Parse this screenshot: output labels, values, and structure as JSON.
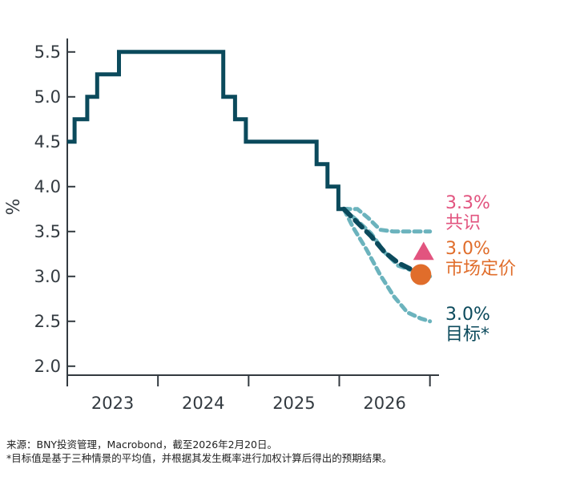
{
  "chart_data": {
    "type": "line",
    "ylabel": "%",
    "ylim": [
      1.9,
      5.65
    ],
    "xlim": [
      2022.0,
      2026.1
    ],
    "yticks": [
      2.0,
      2.5,
      3.0,
      3.5,
      4.0,
      4.5,
      5.0,
      5.5
    ],
    "ytick_labels": [
      "2.0",
      "2.5",
      "3.0",
      "3.5",
      "4.0",
      "4.5",
      "5.0",
      "5.5"
    ],
    "xtick_positions": [
      2022.0,
      2023.0,
      2024.0,
      2025.0,
      2026.0
    ],
    "xcategories": [
      {
        "label": "2023",
        "x": 2022.5
      },
      {
        "label": "2024",
        "x": 2023.5
      },
      {
        "label": "2025",
        "x": 2024.5
      },
      {
        "label": "2026",
        "x": 2025.5
      }
    ],
    "colors": {
      "history": "#0b4a5c",
      "scenario": "#6bb3bd",
      "target": "#0b4a5c",
      "consensus": "#e2547f",
      "market": "#e06d2b",
      "axis": "#333a40"
    },
    "series": [
      {
        "name": "history",
        "step": true,
        "points": [
          [
            2022.0,
            4.5
          ],
          [
            2022.08,
            4.5
          ],
          [
            2022.08,
            4.75
          ],
          [
            2022.22,
            4.75
          ],
          [
            2022.22,
            5.0
          ],
          [
            2022.33,
            5.0
          ],
          [
            2022.33,
            5.25
          ],
          [
            2022.57,
            5.25
          ],
          [
            2022.57,
            5.5
          ],
          [
            2023.72,
            5.5
          ],
          [
            2023.72,
            5.0
          ],
          [
            2023.85,
            5.0
          ],
          [
            2023.85,
            4.75
          ],
          [
            2023.97,
            4.75
          ],
          [
            2023.97,
            4.5
          ],
          [
            2024.75,
            4.5
          ],
          [
            2024.75,
            4.25
          ],
          [
            2024.87,
            4.25
          ],
          [
            2024.87,
            4.0
          ],
          [
            2024.99,
            4.0
          ],
          [
            2024.99,
            3.75
          ],
          [
            2025.1,
            3.75
          ]
        ]
      },
      {
        "name": "scenario-high",
        "points": [
          [
            2025.05,
            3.75
          ],
          [
            2025.2,
            3.75
          ],
          [
            2025.32,
            3.65
          ],
          [
            2025.45,
            3.52
          ],
          [
            2025.6,
            3.5
          ],
          [
            2025.8,
            3.5
          ],
          [
            2026.0,
            3.5
          ]
        ]
      },
      {
        "name": "scenario-mid",
        "points": [
          [
            2025.05,
            3.75
          ],
          [
            2025.2,
            3.62
          ],
          [
            2025.35,
            3.48
          ],
          [
            2025.5,
            3.27
          ],
          [
            2025.65,
            3.12
          ],
          [
            2025.85,
            3.05
          ],
          [
            2026.0,
            3.0
          ]
        ]
      },
      {
        "name": "scenario-low",
        "points": [
          [
            2025.05,
            3.75
          ],
          [
            2025.15,
            3.55
          ],
          [
            2025.3,
            3.3
          ],
          [
            2025.45,
            3.02
          ],
          [
            2025.6,
            2.78
          ],
          [
            2025.75,
            2.6
          ],
          [
            2025.9,
            2.53
          ],
          [
            2026.0,
            2.5
          ]
        ]
      },
      {
        "name": "target",
        "points": [
          [
            2025.05,
            3.75
          ],
          [
            2025.2,
            3.6
          ],
          [
            2025.35,
            3.45
          ],
          [
            2025.5,
            3.27
          ],
          [
            2025.65,
            3.15
          ],
          [
            2025.85,
            3.05
          ],
          [
            2026.0,
            3.0
          ]
        ]
      }
    ],
    "markers": [
      {
        "name": "consensus",
        "shape": "triangle",
        "x": 2025.93,
        "y": 3.27
      },
      {
        "name": "market-pricing",
        "shape": "circle",
        "x": 2025.9,
        "y": 3.02
      }
    ],
    "annotations": [
      {
        "name": "consensus",
        "value": "3.3%",
        "label": "共识"
      },
      {
        "name": "market-pricing",
        "value": "3.0%",
        "label": "市场定价"
      },
      {
        "name": "target",
        "value": "3.0%",
        "label": "目标*"
      }
    ]
  },
  "footer": {
    "source": "来源：BNY投资管理，Macrobond，截至2026年2月20日。",
    "note": "*目标值是基于三种情景的平均值，并根据其发生概率进行加权计算后得出的预期结果。"
  }
}
